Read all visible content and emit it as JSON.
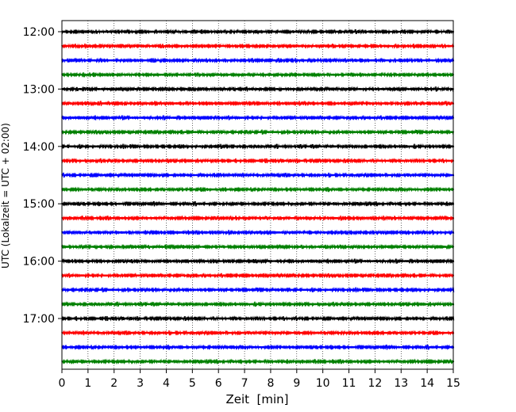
{
  "chart_data": {
    "type": "line",
    "title": "",
    "xlabel": "Zeit  [min]",
    "ylabel": "UTC (Lokalzeit = UTC + 02:00)",
    "xlim": [
      0,
      15
    ],
    "x_ticks": [
      0,
      1,
      2,
      3,
      4,
      5,
      6,
      7,
      8,
      9,
      10,
      11,
      12,
      13,
      14,
      15
    ],
    "y_tick_labels": [
      "12:00",
      "13:00",
      "14:00",
      "15:00",
      "16:00",
      "17:00"
    ],
    "grid": "vertical dotted",
    "trace_colors": [
      "#000000",
      "#ff0000",
      "#0000ff",
      "#008000"
    ],
    "traces": [
      {
        "start": "12:00",
        "color": "#000000"
      },
      {
        "start": "12:15",
        "color": "#ff0000"
      },
      {
        "start": "12:30",
        "color": "#0000ff"
      },
      {
        "start": "12:45",
        "color": "#008000"
      },
      {
        "start": "13:00",
        "color": "#000000"
      },
      {
        "start": "13:15",
        "color": "#ff0000"
      },
      {
        "start": "13:30",
        "color": "#0000ff"
      },
      {
        "start": "13:45",
        "color": "#008000"
      },
      {
        "start": "14:00",
        "color": "#000000"
      },
      {
        "start": "14:15",
        "color": "#ff0000"
      },
      {
        "start": "14:30",
        "color": "#0000ff"
      },
      {
        "start": "14:45",
        "color": "#008000"
      },
      {
        "start": "15:00",
        "color": "#000000"
      },
      {
        "start": "15:15",
        "color": "#ff0000"
      },
      {
        "start": "15:30",
        "color": "#0000ff"
      },
      {
        "start": "15:45",
        "color": "#008000"
      },
      {
        "start": "16:00",
        "color": "#000000"
      },
      {
        "start": "16:15",
        "color": "#ff0000"
      },
      {
        "start": "16:30",
        "color": "#0000ff"
      },
      {
        "start": "16:45",
        "color": "#008000"
      },
      {
        "start": "17:00",
        "color": "#000000"
      },
      {
        "start": "17:15",
        "color": "#ff0000"
      },
      {
        "start": "17:30",
        "color": "#0000ff"
      },
      {
        "start": "17:45",
        "color": "#008000"
      }
    ]
  }
}
